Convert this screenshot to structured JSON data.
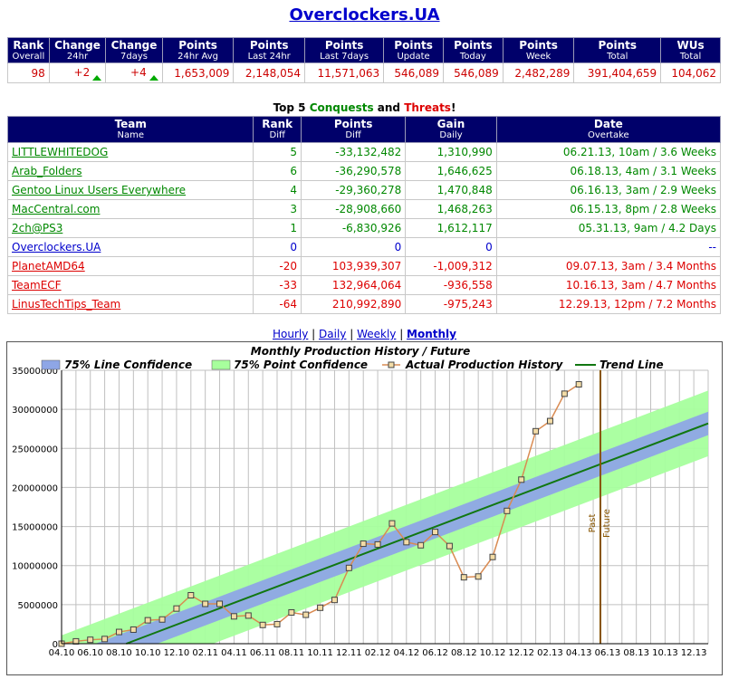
{
  "title": "Overclockers.UA",
  "stats": {
    "headers": [
      {
        "main": "Rank",
        "sub": "Overall"
      },
      {
        "main": "Change",
        "sub": "24hr"
      },
      {
        "main": "Change",
        "sub": "7days"
      },
      {
        "main": "Points",
        "sub": "24hr Avg"
      },
      {
        "main": "Points",
        "sub": "Last 24hr"
      },
      {
        "main": "Points",
        "sub": "Last 7days"
      },
      {
        "main": "Points",
        "sub": "Update"
      },
      {
        "main": "Points",
        "sub": "Today"
      },
      {
        "main": "Points",
        "sub": "Week"
      },
      {
        "main": "Points",
        "sub": "Total"
      },
      {
        "main": "WUs",
        "sub": "Total"
      }
    ],
    "values": [
      "98",
      "+2",
      "+4",
      "1,653,009",
      "2,148,054",
      "11,571,063",
      "546,089",
      "546,089",
      "2,482,289",
      "391,404,659",
      "104,062"
    ]
  },
  "top5": {
    "prefix": "Top 5 ",
    "conquests": "Conquests",
    "and": " and ",
    "threats": "Threats",
    "suffix": "!"
  },
  "teams": {
    "headers": [
      {
        "main": "Team",
        "sub": "Name"
      },
      {
        "main": "Rank",
        "sub": "Diff"
      },
      {
        "main": "Points",
        "sub": "Diff"
      },
      {
        "main": "Gain",
        "sub": "Daily"
      },
      {
        "main": "Date",
        "sub": "Overtake"
      }
    ],
    "rows": [
      {
        "name": "LITTLEWHITEDOG",
        "rank": "5",
        "points": "-33,132,482",
        "gain": "1,310,990",
        "date": "06.21.13, 10am / 3.6 Weeks",
        "kind": "conq"
      },
      {
        "name": "Arab_Folders",
        "rank": "6",
        "points": "-36,290,578",
        "gain": "1,646,625",
        "date": "06.18.13, 4am / 3.1 Weeks",
        "kind": "conq"
      },
      {
        "name": "Gentoo Linux Users Everywhere",
        "rank": "4",
        "points": "-29,360,278",
        "gain": "1,470,848",
        "date": "06.16.13, 3am / 2.9 Weeks",
        "kind": "conq"
      },
      {
        "name": "MacCentral.com",
        "rank": "3",
        "points": "-28,908,660",
        "gain": "1,468,263",
        "date": "06.15.13, 8pm / 2.8 Weeks",
        "kind": "conq"
      },
      {
        "name": "2ch@PS3",
        "rank": "1",
        "points": "-6,830,926",
        "gain": "1,612,117",
        "date": "05.31.13, 9am / 4.2 Days",
        "kind": "conq"
      },
      {
        "name": "Overclockers.UA",
        "rank": "0",
        "points": "0",
        "gain": "0",
        "date": "--",
        "kind": "self"
      },
      {
        "name": "PlanetAMD64",
        "rank": "-20",
        "points": "103,939,307",
        "gain": "-1,009,312",
        "date": "09.07.13, 3am / 3.4 Months",
        "kind": "threat"
      },
      {
        "name": "TeamECF",
        "rank": "-33",
        "points": "132,964,064",
        "gain": "-936,558",
        "date": "10.16.13, 3am / 4.7 Months",
        "kind": "threat"
      },
      {
        "name": "LinusTechTips_Team",
        "rank": "-64",
        "points": "210,992,890",
        "gain": "-975,243",
        "date": "12.29.13, 12pm / 7.2 Months",
        "kind": "threat"
      }
    ]
  },
  "periods": {
    "hourly": "Hourly",
    "daily": "Daily",
    "weekly": "Weekly",
    "monthly": "Monthly",
    "active": "Monthly"
  },
  "chart_data": {
    "type": "line",
    "title": "Monthly Production History / Future",
    "legend": {
      "placement": "top",
      "line_conf": "75% Line Confidence",
      "point_conf": "75% Point Confidence",
      "actual": "Actual Production History",
      "trend": "Trend Line"
    },
    "colors": {
      "actual": "#d98b52",
      "trend": "#117711",
      "line_conf": "#8ea6e6",
      "point_conf": "#a7ff9d",
      "divider": "#885500"
    },
    "x_ticks": [
      "04.10",
      "06.10",
      "08.10",
      "10.10",
      "12.10",
      "02.11",
      "04.11",
      "06.11",
      "08.11",
      "10.11",
      "12.11",
      "02.12",
      "04.12",
      "06.12",
      "08.12",
      "10.12",
      "12.12",
      "02.13",
      "04.13",
      "06.13",
      "08.13",
      "10.13",
      "12.13"
    ],
    "x_months_total": 45,
    "y_ticks": [
      "0",
      "5000000",
      "10000000",
      "15000000",
      "20000000",
      "25000000",
      "30000000",
      "35000000"
    ],
    "ylim": [
      0,
      35000000
    ],
    "grid": true,
    "actual_values": [
      0,
      300000,
      500000,
      600000,
      1500000,
      1800000,
      3000000,
      3100000,
      4500000,
      6200000,
      5100000,
      5100000,
      3500000,
      3600000,
      2400000,
      2500000,
      4000000,
      3700000,
      4600000,
      5600000,
      9700000,
      12800000,
      12700000,
      15400000,
      13000000,
      12600000,
      14300000,
      12500000,
      8500000,
      8600000,
      11100000,
      17000000,
      21000000,
      27200000,
      28500000,
      32000000,
      33200000
    ],
    "trend": {
      "start": [
        4.5,
        0
      ],
      "end": [
        45,
        28200000
      ]
    },
    "line_conf_halfwidth": 1500000,
    "point_conf_halfwidth": 4200000,
    "divider_month": 37.5,
    "divider_labels": {
      "past": "Past",
      "future": "Future"
    }
  }
}
